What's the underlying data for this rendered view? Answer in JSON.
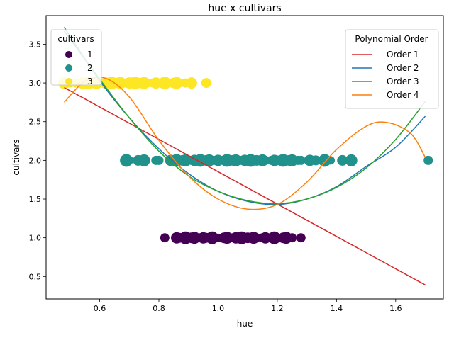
{
  "chart_data": {
    "type": "scatter",
    "title": "hue x cultivars",
    "xlabel": "hue",
    "ylabel": "cultivars",
    "xlim": [
      0.419,
      1.761
    ],
    "ylim": [
      0.21,
      3.87
    ],
    "xticks": [
      0.6,
      0.8,
      1.0,
      1.2,
      1.4,
      1.6
    ],
    "xtick_labels": [
      "0.6",
      "0.8",
      "1.0",
      "1.2",
      "1.4",
      "1.6"
    ],
    "yticks": [
      0.5,
      1.0,
      1.5,
      2.0,
      2.5,
      3.0,
      3.5
    ],
    "ytick_labels": [
      "0.5",
      "1.0",
      "1.5",
      "2.0",
      "2.5",
      "3.0",
      "3.5"
    ],
    "grid": false,
    "scatter_legend": {
      "title": "cultivars",
      "placement": "top-left",
      "entries": [
        {
          "label": "1",
          "color": "#440154"
        },
        {
          "label": "2",
          "color": "#21918c"
        },
        {
          "label": "3",
          "color": "#fde725"
        }
      ]
    },
    "line_legend": {
      "title": "Polynomial Order",
      "placement": "top-right"
    },
    "points": [
      {
        "cultivar": 1,
        "color": "#440154",
        "y": 1.0,
        "x": [
          0.82,
          0.86,
          0.87,
          0.89,
          0.9,
          0.91,
          0.92,
          0.93,
          0.94,
          0.95,
          0.96,
          0.98,
          1.0,
          1.02,
          1.03,
          1.04,
          1.05,
          1.06,
          1.07,
          1.08,
          1.09,
          1.1,
          1.12,
          1.13,
          1.15,
          1.16,
          1.18,
          1.19,
          1.2,
          1.22,
          1.23,
          1.25,
          1.28
        ]
      },
      {
        "cultivar": 2,
        "color": "#21918c",
        "y": 2.0,
        "x": [
          0.69,
          0.7,
          0.73,
          0.75,
          0.79,
          0.8,
          0.84,
          0.85,
          0.86,
          0.87,
          0.88,
          0.89,
          0.9,
          0.91,
          0.92,
          0.93,
          0.94,
          0.95,
          0.96,
          0.97,
          0.98,
          0.99,
          1.0,
          1.02,
          1.03,
          1.04,
          1.05,
          1.06,
          1.07,
          1.08,
          1.09,
          1.1,
          1.11,
          1.12,
          1.13,
          1.15,
          1.16,
          1.18,
          1.19,
          1.2,
          1.22,
          1.23,
          1.24,
          1.25,
          1.27,
          1.28,
          1.31,
          1.33,
          1.36,
          1.38,
          1.42,
          1.45,
          1.71
        ]
      },
      {
        "cultivar": 3,
        "color": "#fde725",
        "y": 3.0,
        "x": [
          0.48,
          0.5,
          0.52,
          0.54,
          0.55,
          0.56,
          0.57,
          0.58,
          0.59,
          0.6,
          0.61,
          0.62,
          0.63,
          0.64,
          0.65,
          0.66,
          0.67,
          0.68,
          0.69,
          0.7,
          0.71,
          0.72,
          0.73,
          0.74,
          0.75,
          0.76,
          0.78,
          0.79,
          0.81,
          0.82,
          0.84,
          0.85,
          0.86,
          0.87,
          0.89,
          0.91,
          0.96
        ]
      }
    ],
    "series": [
      {
        "name": "Order 1",
        "color": "#d62728",
        "x": [
          0.48,
          1.7
        ],
        "y": [
          2.94,
          0.39
        ]
      },
      {
        "name": "Order 2",
        "color": "#1f77b4",
        "x": [
          0.48,
          0.6,
          0.7,
          0.8,
          0.9,
          1.0,
          1.1,
          1.2,
          1.3,
          1.4,
          1.5,
          1.6,
          1.7
        ],
        "y": [
          3.72,
          3.03,
          2.55,
          2.15,
          1.83,
          1.6,
          1.47,
          1.43,
          1.5,
          1.66,
          1.92,
          2.17,
          2.57
        ]
      },
      {
        "name": "Order 3",
        "color": "#2ca02c",
        "x": [
          0.48,
          0.6,
          0.7,
          0.8,
          0.9,
          1.0,
          1.1,
          1.2,
          1.3,
          1.4,
          1.5,
          1.6,
          1.7
        ],
        "y": [
          3.67,
          3.05,
          2.55,
          2.12,
          1.8,
          1.6,
          1.48,
          1.44,
          1.5,
          1.65,
          1.9,
          2.27,
          2.76
        ]
      },
      {
        "name": "Order 4",
        "color": "#ff7f0e",
        "x": [
          0.48,
          0.55,
          0.62,
          0.7,
          0.8,
          0.9,
          1.0,
          1.1,
          1.2,
          1.3,
          1.4,
          1.5,
          1.57,
          1.65,
          1.7
        ],
        "y": [
          2.75,
          3.02,
          3.06,
          2.82,
          2.26,
          1.8,
          1.5,
          1.37,
          1.43,
          1.72,
          2.14,
          2.44,
          2.49,
          2.35,
          2.04
        ]
      }
    ]
  }
}
